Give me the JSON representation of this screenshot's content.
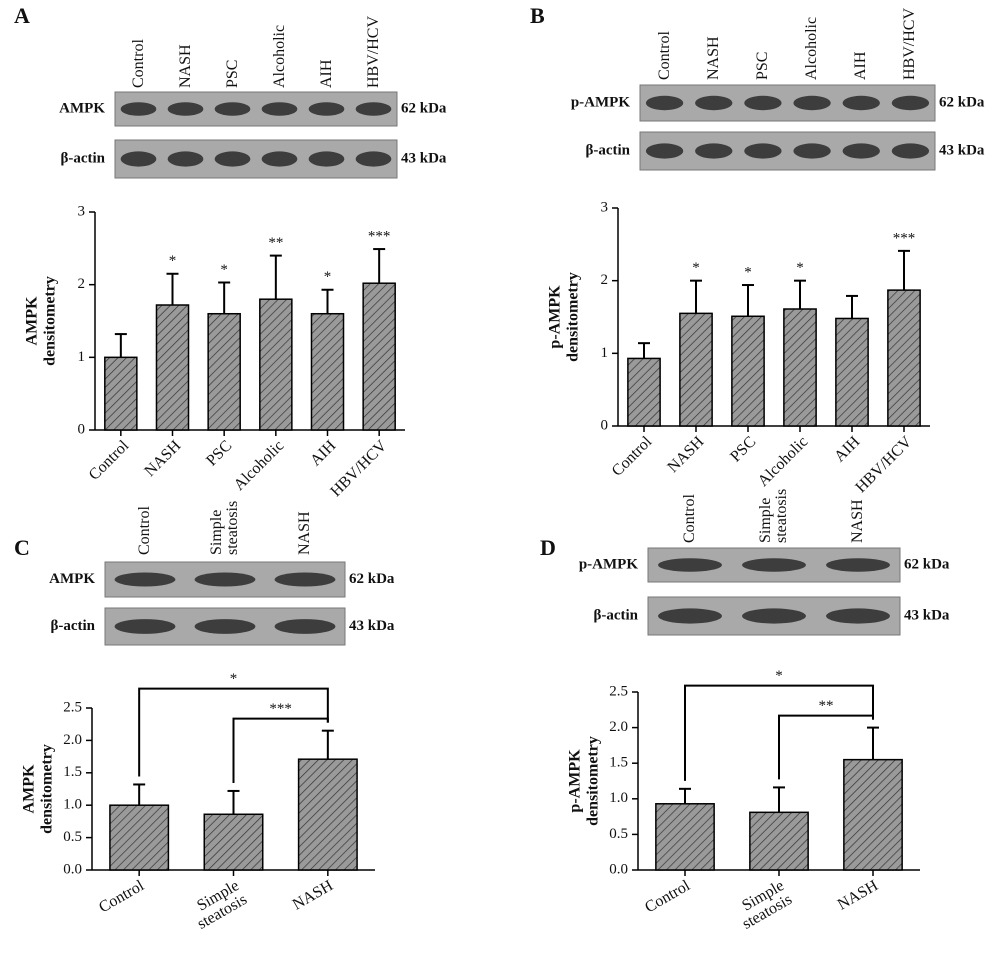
{
  "chart_data": [
    {
      "type": "bar",
      "panel": "A",
      "blot": {
        "lanes": [
          "Control",
          "NASH",
          "PSC",
          "Alcoholic",
          "AIH",
          "HBV/HCV"
        ],
        "rows": [
          {
            "name": "AMPK",
            "size": "62 kDa"
          },
          {
            "name": "β-actin",
            "size": "43 kDa"
          }
        ]
      },
      "ylabel": [
        "AMPK",
        "densitometry"
      ],
      "categories": [
        "Control",
        "NASH",
        "PSC",
        "Alcoholic",
        "AIH",
        "HBV/HCV"
      ],
      "values": [
        1.0,
        1.72,
        1.6,
        1.8,
        1.6,
        2.02
      ],
      "errors": [
        0.32,
        0.43,
        0.43,
        0.6,
        0.33,
        0.47
      ],
      "annotations": [
        null,
        "*",
        "*",
        "**",
        "*",
        "***"
      ],
      "color": "#9a9a9a",
      "ylim": [
        0,
        3
      ],
      "yticks": [
        0,
        1,
        2,
        3
      ]
    },
    {
      "type": "bar",
      "panel": "B",
      "blot": {
        "lanes": [
          "Control",
          "NASH",
          "PSC",
          "Alcoholic",
          "AIH",
          "HBV/HCV"
        ],
        "rows": [
          {
            "name": "p-AMPK",
            "size": "62 kDa"
          },
          {
            "name": "β-actin",
            "size": "43 kDa"
          }
        ]
      },
      "ylabel": [
        "p-AMPK",
        "densitometry"
      ],
      "categories": [
        "Control",
        "NASH",
        "PSC",
        "Alcoholic",
        "AIH",
        "HBV/HCV"
      ],
      "values": [
        0.93,
        1.55,
        1.51,
        1.61,
        1.48,
        1.87
      ],
      "errors": [
        0.21,
        0.45,
        0.43,
        0.39,
        0.31,
        0.54
      ],
      "annotations": [
        null,
        "*",
        "*",
        "*",
        null,
        "***"
      ],
      "color": "#9a9a9a",
      "ylim": [
        0,
        3
      ],
      "yticks": [
        0,
        1,
        2,
        3
      ]
    },
    {
      "type": "bar",
      "panel": "C",
      "blot": {
        "lanes": [
          "Control",
          "Simple steatosis",
          "NASH"
        ],
        "rows": [
          {
            "name": "AMPK",
            "size": "62 kDa"
          },
          {
            "name": "β-actin",
            "size": "43 kDa"
          }
        ]
      },
      "ylabel": [
        "AMPK",
        "densitometry"
      ],
      "categories": [
        "Control",
        "Simple steatosis",
        "NASH"
      ],
      "values": [
        1.0,
        0.86,
        1.71
      ],
      "errors": [
        0.32,
        0.36,
        0.44
      ],
      "comparisons": [
        {
          "groups": [
            "Control",
            "NASH"
          ],
          "label": "*"
        },
        {
          "groups": [
            "Simple steatosis",
            "NASH"
          ],
          "label": "***"
        }
      ],
      "color": "#9a9a9a",
      "ylim": [
        0,
        2.5
      ],
      "yticks": [
        {
          "value": 0,
          "label": "0.0"
        },
        0.5,
        {
          "value": 1,
          "label": "1.0"
        },
        1.5,
        {
          "value": 2,
          "label": "2.0"
        },
        2.5
      ]
    },
    {
      "type": "bar",
      "panel": "D",
      "blot": {
        "lanes": [
          "Control",
          "Simple steatosis",
          "NASH"
        ],
        "rows": [
          {
            "name": "p-AMPK",
            "size": "62 kDa"
          },
          {
            "name": "β-actin",
            "size": "43 kDa"
          }
        ]
      },
      "ylabel": [
        "p-AMPK",
        "densitometry"
      ],
      "categories": [
        "Control",
        "Simple steatosis",
        "NASH"
      ],
      "values": [
        0.93,
        0.81,
        1.55
      ],
      "errors": [
        0.21,
        0.35,
        0.45
      ],
      "comparisons": [
        {
          "groups": [
            "Control",
            "NASH"
          ],
          "label": "*"
        },
        {
          "groups": [
            "Simple steatosis",
            "NASH"
          ],
          "label": "**"
        }
      ],
      "color": "#9a9a9a",
      "ylim": [
        0,
        2.5
      ],
      "yticks": [
        {
          "value": 0,
          "label": "0.0"
        },
        0.5,
        {
          "value": 1,
          "label": "1.0"
        },
        1.5,
        {
          "value": 2,
          "label": "2.0"
        },
        2.5
      ]
    }
  ]
}
